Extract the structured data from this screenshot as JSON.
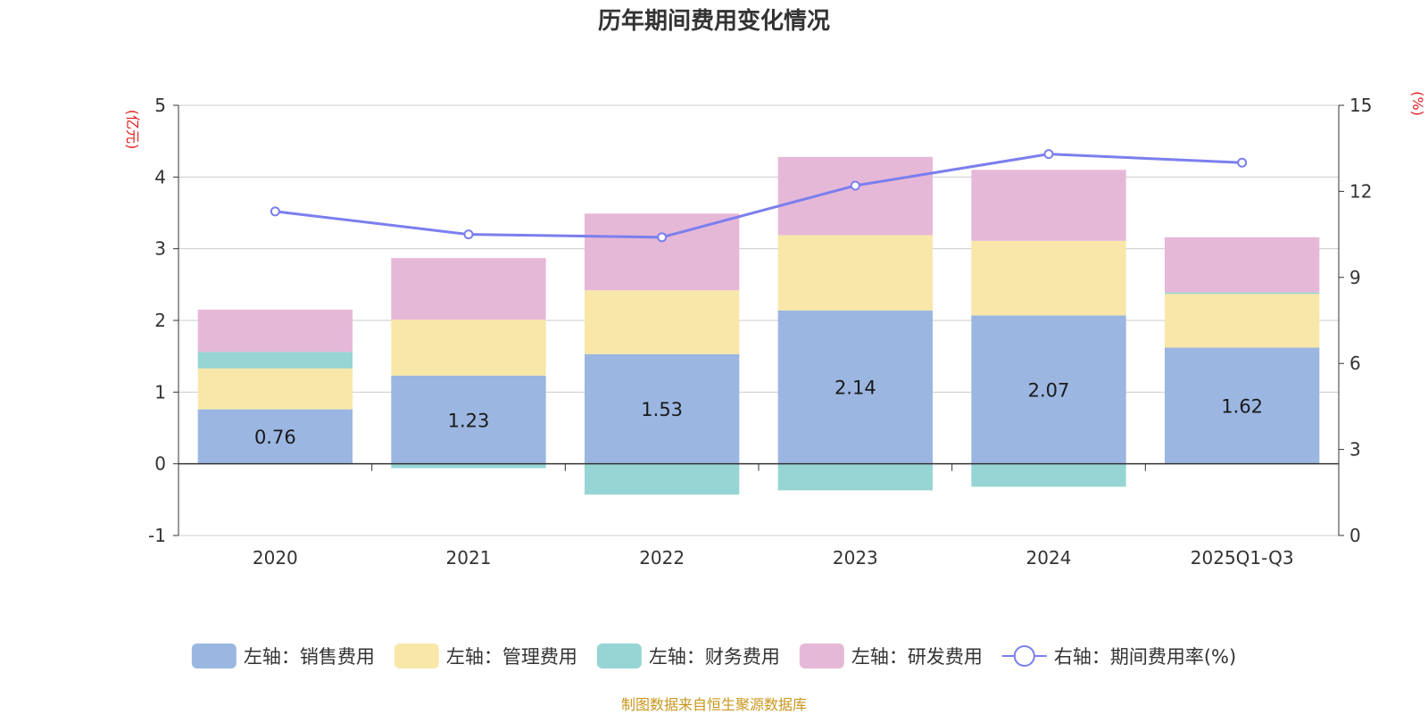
{
  "chart_data": {
    "type": "bar",
    "stacked": true,
    "title": "历年期间费用变化情况",
    "categories": [
      "2020",
      "2021",
      "2022",
      "2023",
      "2024",
      "2025Q1-Q3"
    ],
    "left_axis": {
      "unit": "(亿元)",
      "ylim": [
        -1,
        5
      ],
      "ticks": [
        -1,
        0,
        1,
        2,
        3,
        4,
        5
      ]
    },
    "right_axis": {
      "unit": "(%)",
      "ylim": [
        0,
        15
      ],
      "ticks": [
        0,
        3,
        6,
        9,
        12,
        15
      ]
    },
    "series": [
      {
        "name": "左轴：销售费用",
        "type": "bar",
        "color": "#9BB6E1",
        "values": [
          0.76,
          1.23,
          1.53,
          2.14,
          2.07,
          1.62
        ],
        "labels": [
          "0.76",
          "1.23",
          "1.53",
          "2.14",
          "2.07",
          "1.62"
        ]
      },
      {
        "name": "左轴：管理费用",
        "type": "bar",
        "color": "#F8E7A8",
        "values": [
          0.57,
          0.78,
          0.89,
          1.05,
          1.04,
          0.75
        ]
      },
      {
        "name": "左轴：财务费用",
        "type": "bar",
        "color": "#97D5D5",
        "values": [
          0.23,
          -0.06,
          -0.43,
          -0.37,
          -0.32,
          0.02
        ]
      },
      {
        "name": "左轴：研发费用",
        "type": "bar",
        "color": "#E6B8D8",
        "values": [
          0.59,
          0.86,
          1.07,
          1.09,
          0.99,
          0.77
        ]
      },
      {
        "name": "右轴：期间费用率(%)",
        "type": "line",
        "axis": "right",
        "color": "#7B7FEE",
        "values": [
          11.3,
          10.5,
          10.4,
          12.2,
          13.3,
          13.0
        ]
      }
    ],
    "source": "制图数据来自恒生聚源数据库",
    "colors": {
      "title": "#333333",
      "unit": "#E02020",
      "grid": "#CCCCCC",
      "axis": "#333333",
      "source": "#C8961E"
    }
  }
}
